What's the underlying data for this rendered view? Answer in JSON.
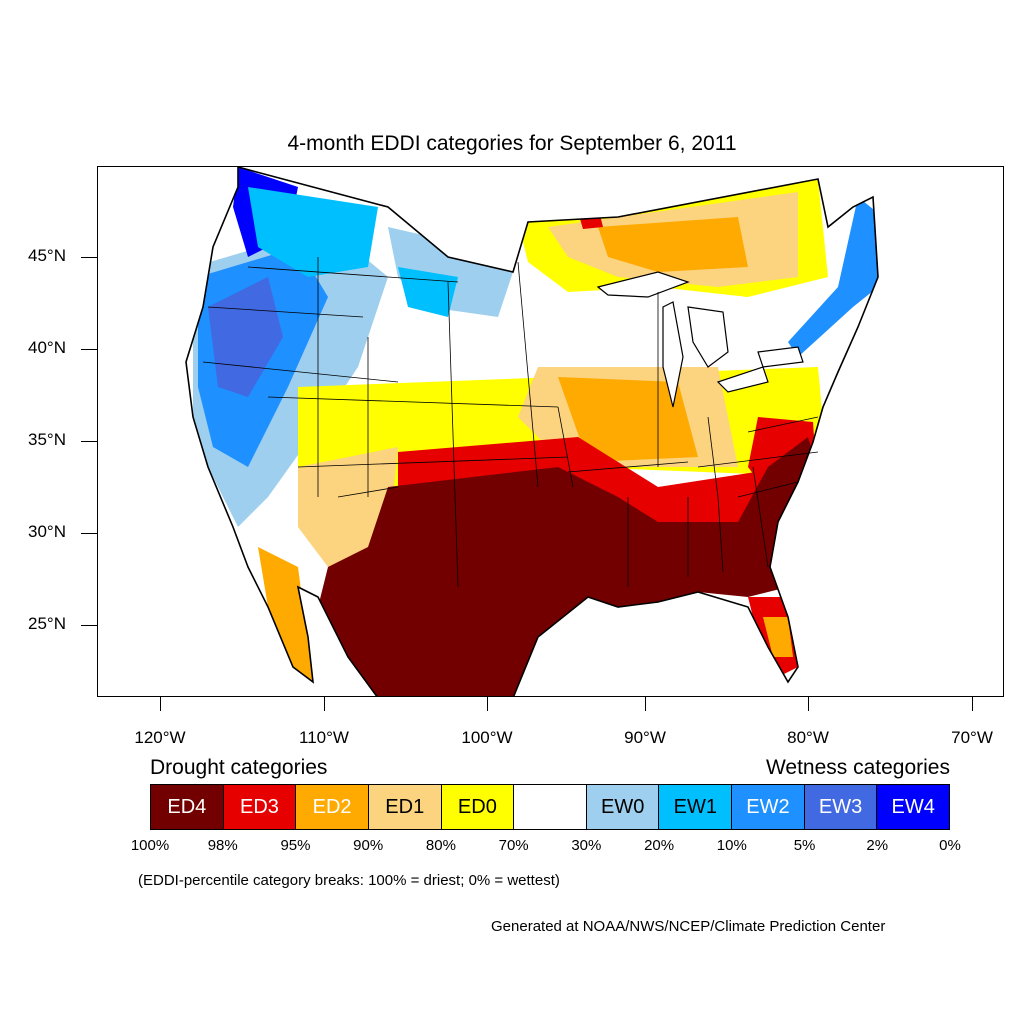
{
  "title": "4-month EDDI categories for September 6, 2011",
  "lat_labels": [
    "45°N",
    "40°N",
    "35°N",
    "30°N",
    "25°N"
  ],
  "lon_labels": [
    "120°W",
    "110°W",
    "100°W",
    "90°W",
    "80°W",
    "70°W"
  ],
  "legend": {
    "drought_heading": "Drought categories",
    "wetness_heading": "Wetness categories",
    "categories": [
      {
        "label": "ED4",
        "color": "#730000",
        "text_color": "#ffffff"
      },
      {
        "label": "ED3",
        "color": "#e60000",
        "text_color": "#ffffff"
      },
      {
        "label": "ED2",
        "color": "#ffaa00",
        "text_color": "#ffffff"
      },
      {
        "label": "ED1",
        "color": "#fcd37f",
        "text_color": "#000000"
      },
      {
        "label": "ED0",
        "color": "#ffff00",
        "text_color": "#000000"
      },
      {
        "label": "",
        "color": "#ffffff",
        "text_color": "#000000"
      },
      {
        "label": "EW0",
        "color": "#9ecfee",
        "text_color": "#000000"
      },
      {
        "label": "EW1",
        "color": "#00bfff",
        "text_color": "#000000"
      },
      {
        "label": "EW2",
        "color": "#1e90ff",
        "text_color": "#ffffff"
      },
      {
        "label": "EW3",
        "color": "#4169e1",
        "text_color": "#ffffff"
      },
      {
        "label": "EW4",
        "color": "#0000ff",
        "text_color": "#ffffff"
      }
    ],
    "percentile_breaks": [
      "100%",
      "98%",
      "95%",
      "90%",
      "80%",
      "70%",
      "30%",
      "20%",
      "10%",
      "5%",
      "2%",
      "0%"
    ]
  },
  "note": "(EDDI-percentile category breaks: 100% = driest; 0% = wettest)",
  "credit": "Generated at NOAA/NWS/NCEP/Climate Prediction Center"
}
